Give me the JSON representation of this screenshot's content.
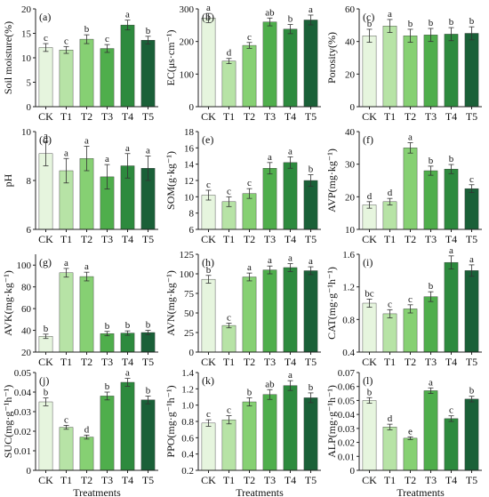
{
  "figure": {
    "categories": [
      "CK",
      "T1",
      "T2",
      "T3",
      "T4",
      "T5"
    ],
    "bar_colors": [
      "#e6f5de",
      "#b7e3a6",
      "#86d073",
      "#4fae4c",
      "#2d8a3e",
      "#1a6038"
    ],
    "bottom_row_xlabel": "Treatments"
  },
  "chart_data": [
    {
      "id": "a",
      "type": "bar",
      "panel_label": "(a)",
      "ylabel": "Soil moisture(%)",
      "ylim": [
        0,
        20
      ],
      "yticks": [
        "0",
        "5",
        "10",
        "15",
        "20"
      ],
      "ytick_values": [
        0,
        5,
        10,
        15,
        20
      ],
      "categories": [
        "CK",
        "T1",
        "T2",
        "T3",
        "T4",
        "T5"
      ],
      "values": [
        12.1,
        11.6,
        13.8,
        11.9,
        16.7,
        13.6
      ],
      "errors": [
        0.8,
        0.7,
        0.9,
        0.8,
        1.0,
        0.8
      ],
      "letters": [
        "c",
        "c",
        "b",
        "c",
        "a",
        "b"
      ]
    },
    {
      "id": "b",
      "type": "bar",
      "panel_label": "(b)",
      "ylabel": "EC(μs·cm⁻¹)",
      "ylim": [
        0,
        300
      ],
      "yticks": [
        "0",
        "100",
        "200",
        "300"
      ],
      "ytick_values": [
        0,
        100,
        200,
        300
      ],
      "categories": [
        "CK",
        "T1",
        "T2",
        "T3",
        "T4",
        "T5"
      ],
      "values": [
        272,
        140,
        188,
        260,
        238,
        266
      ],
      "errors": [
        14,
        8,
        9,
        12,
        14,
        15
      ],
      "letters": [
        "a",
        "d",
        "c",
        "ab",
        "b",
        "a"
      ]
    },
    {
      "id": "c",
      "type": "bar",
      "panel_label": "(c)",
      "ylabel": "Porosity(%)",
      "ylim": [
        0,
        60
      ],
      "yticks": [
        "0",
        "20",
        "40",
        "60"
      ],
      "ytick_values": [
        0,
        20,
        40,
        60
      ],
      "categories": [
        "CK",
        "T1",
        "T2",
        "T3",
        "T4",
        "T5"
      ],
      "values": [
        43.5,
        49.5,
        43.5,
        44.0,
        44.5,
        45.0
      ],
      "errors": [
        4,
        4,
        4,
        4,
        4,
        4
      ],
      "letters": [
        "b",
        "a",
        "b",
        "b",
        "b",
        "b"
      ]
    },
    {
      "id": "d",
      "type": "bar",
      "panel_label": "(d)",
      "ylabel": "pH",
      "ylim": [
        6,
        10
      ],
      "yticks": [
        "6",
        "8",
        "10"
      ],
      "ytick_values": [
        6,
        8,
        10
      ],
      "categories": [
        "CK",
        "T1",
        "T2",
        "T3",
        "T4",
        "T5"
      ],
      "values": [
        9.1,
        8.4,
        8.9,
        8.15,
        8.6,
        8.5
      ],
      "errors": [
        0.5,
        0.5,
        0.5,
        0.5,
        0.5,
        0.5
      ],
      "letters": [
        "a",
        "a",
        "a",
        "a",
        "a",
        "a"
      ]
    },
    {
      "id": "e",
      "type": "bar",
      "panel_label": "(e)",
      "ylabel": "SOM(g·kg⁻¹)",
      "ylim": [
        6,
        18
      ],
      "yticks": [
        "6",
        "8",
        "10",
        "12",
        "14",
        "16",
        "18"
      ],
      "ytick_values": [
        6,
        8,
        10,
        12,
        14,
        16,
        18
      ],
      "categories": [
        "CK",
        "T1",
        "T2",
        "T3",
        "T4",
        "T5"
      ],
      "values": [
        10.2,
        9.4,
        10.4,
        13.5,
        14.2,
        12.0
      ],
      "errors": [
        0.6,
        0.6,
        0.6,
        0.7,
        0.7,
        0.7
      ],
      "letters": [
        "c",
        "c",
        "c",
        "a",
        "a",
        "b"
      ]
    },
    {
      "id": "f",
      "type": "bar",
      "panel_label": "(f)",
      "ylabel": "AVP(mg·kg⁻¹)",
      "ylim": [
        10,
        40
      ],
      "yticks": [
        "10",
        "20",
        "30",
        "40"
      ],
      "ytick_values": [
        10,
        20,
        30,
        40
      ],
      "categories": [
        "CK",
        "T1",
        "T2",
        "T3",
        "T4",
        "T5"
      ],
      "values": [
        17.5,
        18.5,
        35.0,
        28.0,
        28.5,
        22.5
      ],
      "errors": [
        1.0,
        1.0,
        1.6,
        1.4,
        1.4,
        1.2
      ],
      "letters": [
        "d",
        "d",
        "a",
        "b",
        "b",
        "c"
      ]
    },
    {
      "id": "g",
      "type": "bar",
      "panel_label": "(g)",
      "ylabel": "AVK(mg·kg⁻¹)",
      "ylim": [
        20,
        110
      ],
      "yticks": [
        "20",
        "40",
        "60",
        "80",
        "100"
      ],
      "ytick_values": [
        20,
        40,
        60,
        80,
        100
      ],
      "categories": [
        "CK",
        "T1",
        "T2",
        "T3",
        "T4",
        "T5"
      ],
      "values": [
        34.5,
        93.0,
        89.5,
        37.0,
        37.5,
        38.0
      ],
      "errors": [
        2,
        4,
        4,
        2,
        2,
        2
      ],
      "letters": [
        "b",
        "a",
        "a",
        "b",
        "b",
        "b"
      ]
    },
    {
      "id": "h",
      "type": "bar",
      "panel_label": "(h)",
      "ylabel": "AVN(mg·kg⁻¹)",
      "ylim": [
        0,
        125
      ],
      "yticks": [
        "0",
        "25",
        "50",
        "75",
        "100",
        "125"
      ],
      "ytick_values": [
        0,
        25,
        50,
        75,
        100,
        125
      ],
      "categories": [
        "CK",
        "T1",
        "T2",
        "T3",
        "T4",
        "T5"
      ],
      "values": [
        93,
        34,
        96,
        105,
        108,
        104
      ],
      "errors": [
        5,
        3,
        5,
        5,
        5,
        5
      ],
      "letters": [
        "b",
        "c",
        "a",
        "a",
        "a",
        "a"
      ]
    },
    {
      "id": "i",
      "type": "bar",
      "panel_label": "(i)",
      "ylabel": "CAT(mg·g⁻¹h⁻¹)",
      "ylim": [
        0.4,
        1.6
      ],
      "yticks": [
        "0.4",
        "0.8",
        "1.2",
        "1.6"
      ],
      "ytick_values": [
        0.4,
        0.8,
        1.2,
        1.6
      ],
      "categories": [
        "CK",
        "T1",
        "T2",
        "T3",
        "T4",
        "T5"
      ],
      "values": [
        1.0,
        0.87,
        0.93,
        1.08,
        1.5,
        1.4
      ],
      "errors": [
        0.05,
        0.05,
        0.05,
        0.06,
        0.08,
        0.07
      ],
      "letters": [
        "bc",
        "c",
        "c",
        "b",
        "a",
        "a"
      ]
    },
    {
      "id": "j",
      "type": "bar",
      "panel_label": "(j)",
      "ylabel": "SUC(mg·g⁻¹h⁻¹)",
      "ylim": [
        0,
        0.05
      ],
      "yticks": [
        "0",
        "0.01",
        "0.02",
        "0.03",
        "0.04",
        "0.05"
      ],
      "ytick_values": [
        0,
        0.01,
        0.02,
        0.03,
        0.04,
        0.05
      ],
      "categories": [
        "CK",
        "T1",
        "T2",
        "T3",
        "T4",
        "T5"
      ],
      "values": [
        0.035,
        0.022,
        0.017,
        0.038,
        0.045,
        0.036
      ],
      "errors": [
        0.002,
        0.001,
        0.001,
        0.002,
        0.002,
        0.002
      ],
      "letters": [
        "b",
        "c",
        "d",
        "b",
        "a",
        "b"
      ],
      "xlabel": "Treatments"
    },
    {
      "id": "k",
      "type": "bar",
      "panel_label": "(k)",
      "ylabel": "PPO(mg·g⁻¹h⁻¹)",
      "ylim": [
        0.2,
        1.4
      ],
      "yticks": [
        "0.2",
        "0.4",
        "0.6",
        "0.8",
        "1.0",
        "1.2",
        "1.4"
      ],
      "ytick_values": [
        0.2,
        0.4,
        0.6,
        0.8,
        1.0,
        1.2,
        1.4
      ],
      "categories": [
        "CK",
        "T1",
        "T2",
        "T3",
        "T4",
        "T5"
      ],
      "values": [
        0.78,
        0.82,
        1.04,
        1.13,
        1.24,
        1.09
      ],
      "errors": [
        0.04,
        0.05,
        0.05,
        0.06,
        0.06,
        0.06
      ],
      "letters": [
        "c",
        "c",
        "b",
        "ab",
        "a",
        "b"
      ],
      "xlabel": "Treatments"
    },
    {
      "id": "l",
      "type": "bar",
      "panel_label": "(l)",
      "ylabel": "ALP(mg·g⁻¹h⁻¹)",
      "ylim": [
        0,
        0.07
      ],
      "yticks": [
        "0",
        "0.01",
        "0.02",
        "0.03",
        "0.04",
        "0.05",
        "0.06",
        "0.07"
      ],
      "ytick_values": [
        0,
        0.01,
        0.02,
        0.03,
        0.04,
        0.05,
        0.06,
        0.07
      ],
      "categories": [
        "CK",
        "T1",
        "T2",
        "T3",
        "T4",
        "T5"
      ],
      "values": [
        0.05,
        0.031,
        0.023,
        0.057,
        0.037,
        0.051
      ],
      "errors": [
        0.002,
        0.002,
        0.001,
        0.002,
        0.002,
        0.002
      ],
      "letters": [
        "b",
        "d",
        "e",
        "a",
        "c",
        "b"
      ],
      "xlabel": "Treatments"
    }
  ]
}
